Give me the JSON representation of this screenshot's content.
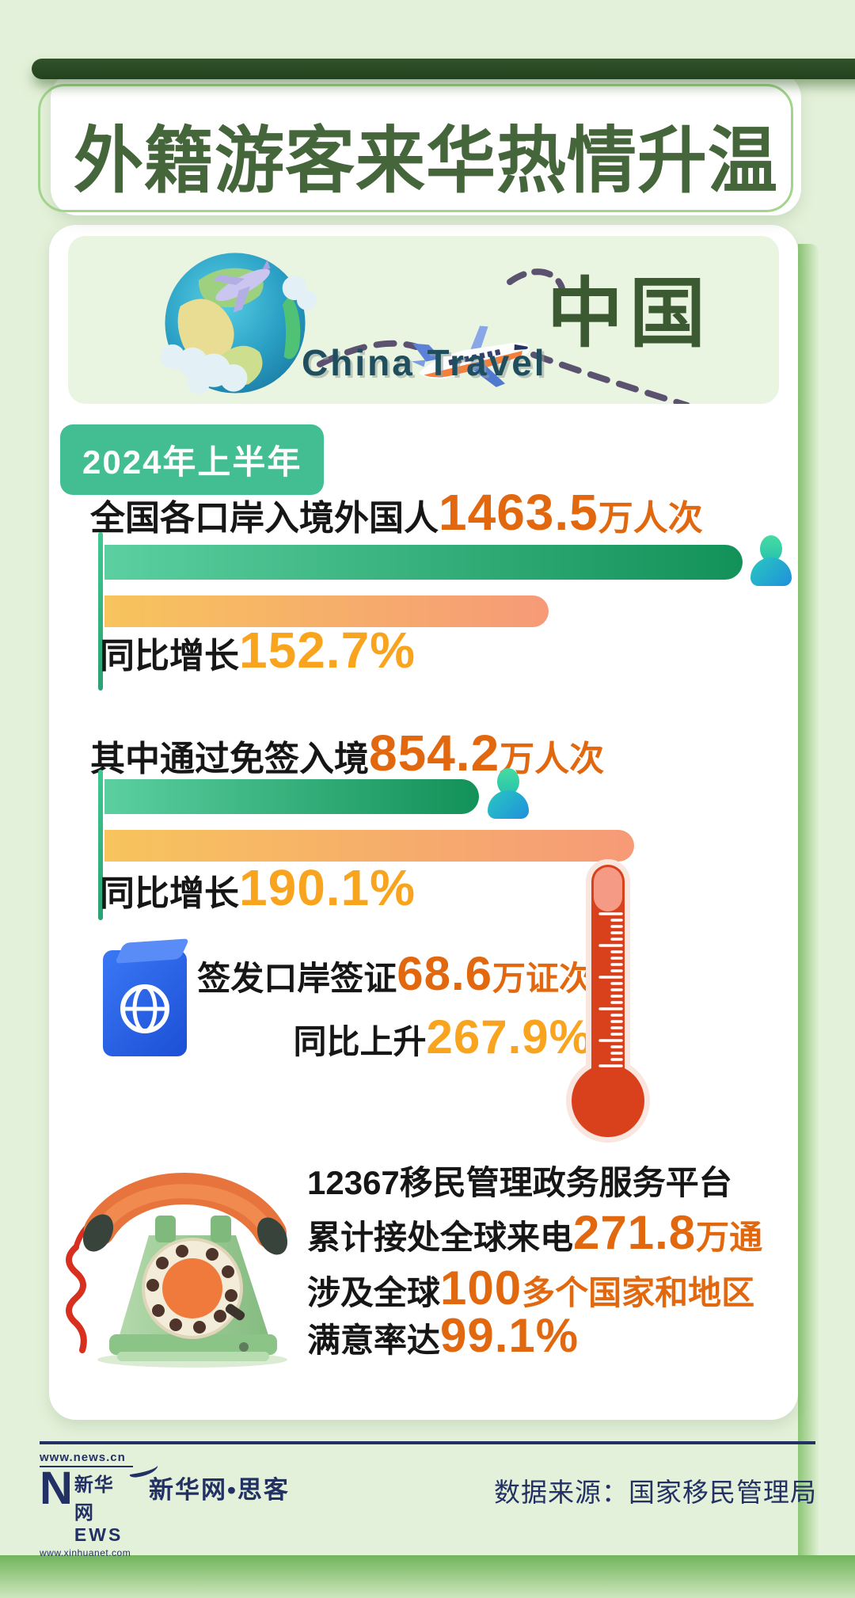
{
  "page": {
    "title": "外籍游客来华热情升温",
    "period_badge": "2024年上半年"
  },
  "banner": {
    "brand_en": "China Travel",
    "brand_cn": "中国"
  },
  "stats": [
    {
      "label": "全国各口岸入境外国人",
      "value": "1463.5",
      "unit": "万人次",
      "growth_label": "同比增长",
      "growth_value": "152.7%",
      "bar_main_pct": 100,
      "bar_growth_pct": 69.6
    },
    {
      "label": "其中通过免签入境",
      "value": "854.2",
      "unit": "万人次",
      "growth_label": "同比增长",
      "growth_value": "190.1%",
      "bar_main_pct": 58.7,
      "bar_growth_pct": 83.0
    }
  ],
  "visa": {
    "label": "签发口岸签证",
    "value": "68.6",
    "unit": "万证次",
    "growth_label": "同比上升",
    "growth_value": "267.9%"
  },
  "hotline": {
    "platform": "12367移民管理政务服务平台",
    "calls_label": "累计接处全球来电",
    "calls_value": "271.8",
    "calls_unit": "万通",
    "coverage_label": "涉及全球",
    "coverage_value": "100",
    "coverage_unit": "多个国家和地区",
    "satisfaction_label": "满意率达",
    "satisfaction_value": "99.1%"
  },
  "footer": {
    "logo_url_top": "www.news.cn",
    "logo_n": "N",
    "logo_cn": "新华网",
    "logo_ews": "EWS",
    "logo_url_bottom": "www.xinhuanet.com",
    "brand": "新华网•思客",
    "source": "数据来源：国家移民管理局"
  },
  "icons": {
    "globe": "globe-with-planes-3d",
    "plane": "airplane-3d",
    "person": "traveler-person",
    "passport": "blue-passport",
    "thermometer": "red-thermometer",
    "phone": "green-rotary-phone"
  },
  "theme": {
    "page_bg": "#e4f1da",
    "card_bg": "#ffffff",
    "banner_bg": "#e9f4e1",
    "title_green": "#44663a",
    "badge_green": "#43bd92",
    "value_orange": "#e2680f",
    "growth_orange": "#f9a41f",
    "text_black": "#161616",
    "bar_green_from": "#5bcfa0",
    "bar_green_to": "#129158",
    "bar_orange_from": "#f7c45d",
    "bar_orange_to": "#f69a77",
    "navy": "#223063",
    "frame_green": "#a3d48e",
    "thermo_red": "#d84018"
  },
  "chart_data": {
    "type": "bar",
    "title": "外籍游客来华热情升温",
    "subtitle": "2024年上半年",
    "metrics": [
      {
        "name": "全国各口岸入境外国人",
        "value": 1463.5,
        "unit": "万人次",
        "yoy_growth_pct": 152.7
      },
      {
        "name": "其中通过免签入境",
        "value": 854.2,
        "unit": "万人次",
        "yoy_growth_pct": 190.1
      },
      {
        "name": "签发口岸签证",
        "value": 68.6,
        "unit": "万证次",
        "yoy_growth_pct": 267.9
      },
      {
        "name": "12367移民管理政务服务平台累计接处全球来电",
        "value": 271.8,
        "unit": "万通",
        "coverage": "涉及全球100多个国家和地区",
        "satisfaction_pct": 99.1
      }
    ],
    "source": "国家移民管理局",
    "layout": "horizontal paired bars: green = volume, orange = YoY growth"
  }
}
